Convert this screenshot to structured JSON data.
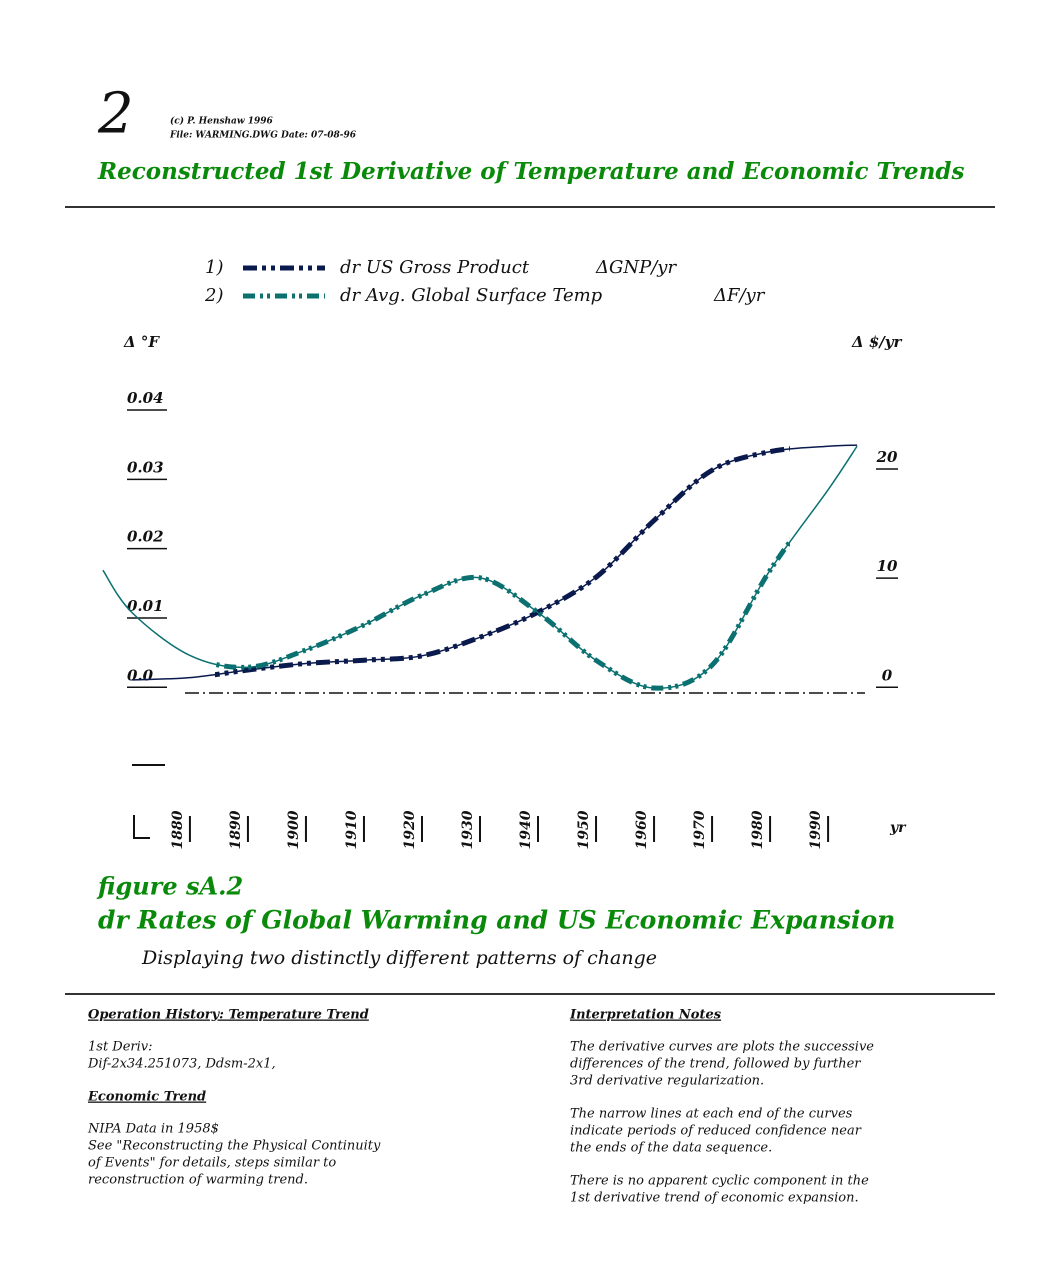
{
  "header": {
    "number": "2",
    "copyright": "(c) P. Henshaw 1996",
    "file": "File: WARMING.DWG   Date: 07-08-96",
    "title": "Reconstructed 1st Derivative of Temperature and Economic Trends"
  },
  "chart_data": {
    "type": "line",
    "x": [
      1865,
      1870,
      1880,
      1890,
      1900,
      1910,
      1920,
      1930,
      1940,
      1950,
      1960,
      1970,
      1980,
      1990,
      1995
    ],
    "xlim": [
      1864.5,
      1995.5
    ],
    "xticks": [
      1880,
      1890,
      1900,
      1910,
      1920,
      1930,
      1940,
      1950,
      1960,
      1970,
      1980,
      1990
    ],
    "xlabel": "yr",
    "ylabel": "Δ °F",
    "y2label": "Δ $/yr",
    "ylim": [
      -0.0115,
      0.04
    ],
    "yticks": [
      {
        "value": 0,
        "label": "0.0"
      },
      0.01,
      0.02,
      0.03,
      0.04
    ],
    "y2lim": [
      -7.3,
      25.4
    ],
    "y2ticks": [
      0,
      10,
      20
    ],
    "series": [
      {
        "number": "1)",
        "name": "dr US Gross Product",
        "unit": "ΔGNP/yr",
        "color": "#0b1a4d",
        "axis": "y2",
        "values": [
          null,
          0.5,
          0.7,
          1.4,
          2.0,
          2.3,
          2.7,
          4.4,
          6.7,
          9.9,
          15.1,
          19.7,
          21.4,
          21.9,
          22.0
        ]
      },
      {
        "number": "2)",
        "name": "dr Avg. Global Surface Temp",
        "unit": "ΔF/yr",
        "color": "#0a7070",
        "values": [
          0.0166,
          0.0105,
          0.0043,
          0.0026,
          0.0051,
          0.0087,
          0.013,
          0.0155,
          0.0105,
          0.0036,
          -0.0004,
          0.0029,
          0.0166,
          0.0282,
          0.0345
        ]
      }
    ]
  },
  "caption": {
    "figure": "figure sA.2",
    "title": "dr Rates of Global Warming and US Economic Expansion",
    "subtitle": "Displaying two distinctly different patterns of change"
  },
  "notes": {
    "left": [
      {
        "heading": "Operation History: Temperature Trend",
        "lines": [
          "1st Deriv:",
          "Dif-2x34.251073, Ddsm-2x1,"
        ]
      },
      {
        "heading": "Economic Trend",
        "lines": [
          "NIPA Data in 1958$",
          "See \"Reconstructing the Physical Continuity",
          "of Events\" for details, steps similar to",
          "reconstruction of warming trend."
        ]
      }
    ],
    "right": [
      {
        "heading": "Interpretation Notes",
        "lines": [
          "The derivative curves are plots the successive",
          "differences of the trend, followed by further",
          "3rd derivative regularization."
        ]
      },
      {
        "lines": [
          "The narrow lines at each end of the curves",
          "indicate periods of reduced confidence near",
          "the ends of the data sequence."
        ]
      },
      {
        "lines": [
          "There is no apparent cyclic component in the",
          "1st derivative trend of economic expansion."
        ]
      }
    ]
  }
}
